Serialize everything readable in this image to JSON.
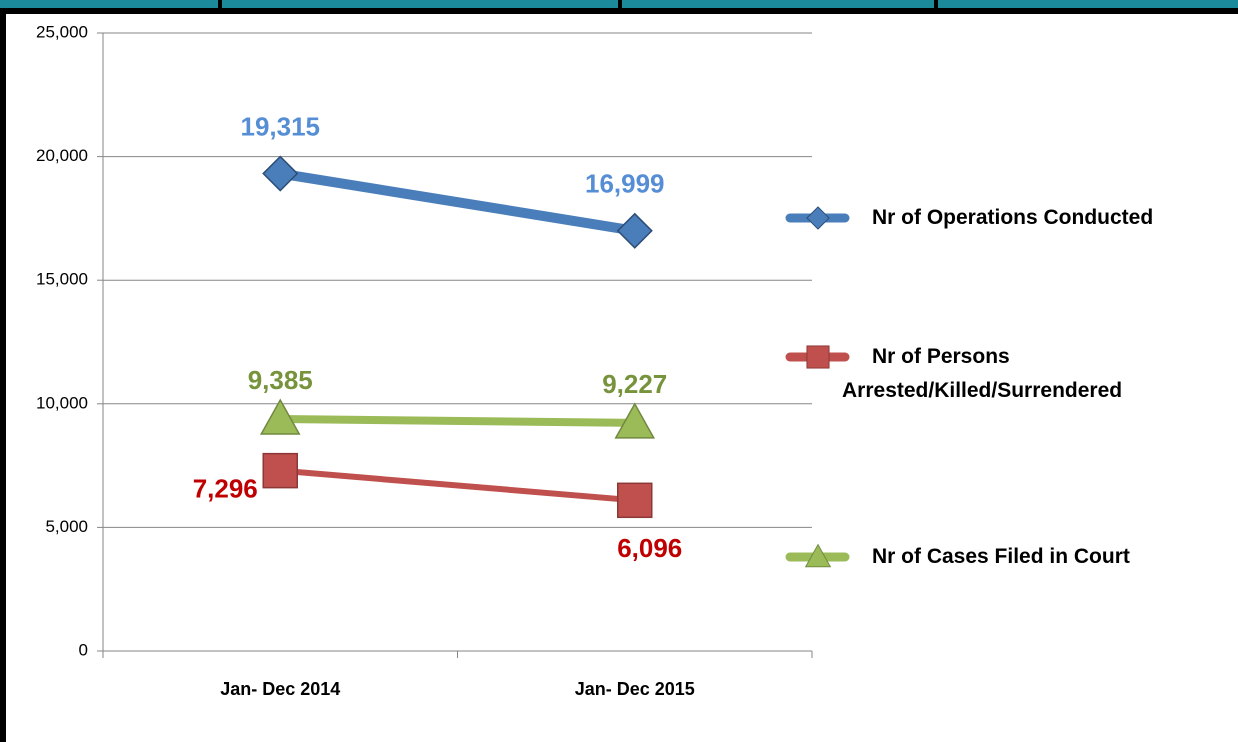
{
  "chart_data": {
    "type": "line",
    "categories": [
      "Jan- Dec 2014",
      "Jan- Dec 2015"
    ],
    "series": [
      {
        "name": "Nr of Operations Conducted",
        "color": "#4a7ebb",
        "label_color": "#558ed5",
        "marker": "diamond",
        "values": [
          19315,
          16999
        ],
        "value_labels": [
          "19,315",
          "16,999"
        ]
      },
      {
        "name": "Nr of Persons Arrested/Killed/Surrendered",
        "color": "#c0504d",
        "label_color": "#c00000",
        "marker": "square",
        "values": [
          7296,
          6096
        ],
        "value_labels": [
          "7,296",
          "6,096"
        ]
      },
      {
        "name": "Nr of Cases Filed in Court",
        "color": "#9bbb59",
        "label_color": "#77933c",
        "marker": "triangle",
        "values": [
          9385,
          9227
        ],
        "value_labels": [
          "9,385",
          "9,227"
        ]
      }
    ],
    "ylim": [
      0,
      25000
    ],
    "yticks": [
      0,
      {
        "value": 5000,
        "label": "5,000"
      },
      {
        "value": 10000,
        "label": "10,000"
      },
      {
        "value": 15000,
        "label": "15,000"
      },
      {
        "value": 20000,
        "label": "20,000"
      },
      {
        "value": 25000,
        "label": "25,000"
      }
    ],
    "grid": true,
    "legend": "right"
  }
}
